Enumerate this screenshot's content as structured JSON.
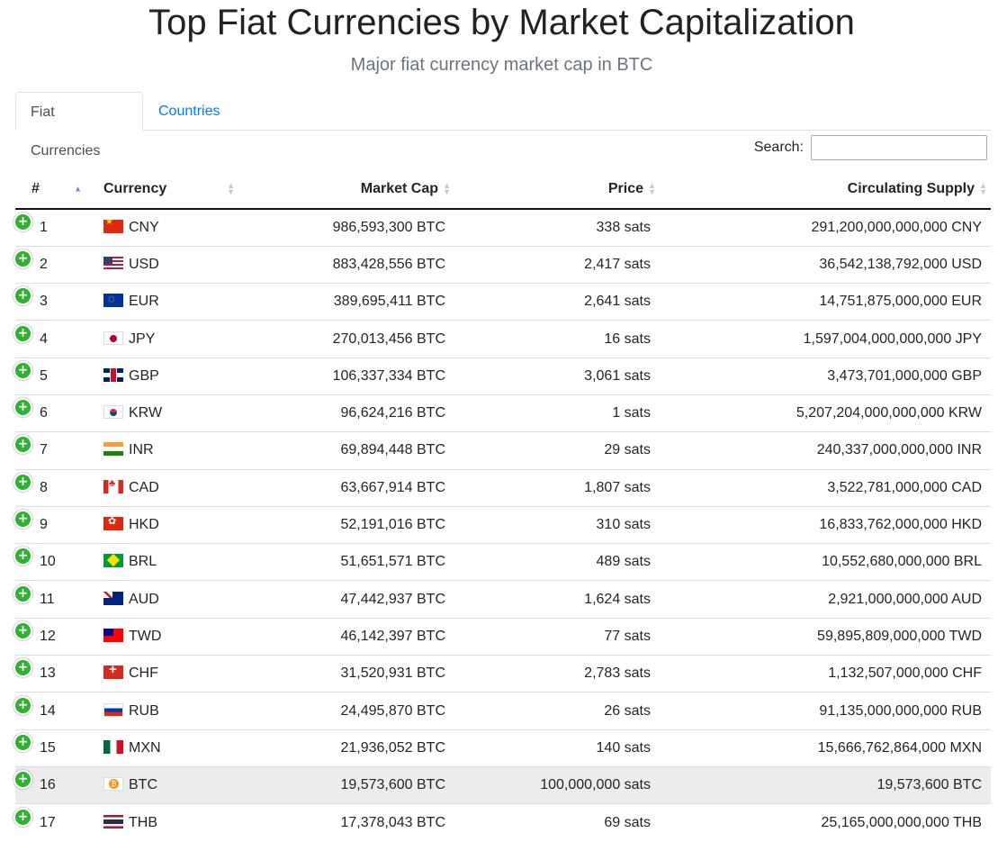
{
  "page": {
    "title": "Top Fiat Currencies by Market Capitalization",
    "subtitle": "Major fiat currency market cap in BTC"
  },
  "tabs": [
    {
      "label": "Fiat Currencies",
      "active": true
    },
    {
      "label": "Countries",
      "active": false
    }
  ],
  "search": {
    "label": "Search:",
    "value": "",
    "placeholder": ""
  },
  "table": {
    "headers": {
      "rank": "#",
      "currency": "Currency",
      "market_cap": "Market Cap",
      "price": "Price",
      "supply": "Circulating Supply"
    },
    "sorted_column": "rank",
    "sort_direction": "ascending",
    "expand_icon": "plus-circle-icon",
    "rows": [
      {
        "rank": "1",
        "currency": "CNY",
        "flag": "china-flag-icon",
        "market_cap": "986,593,300 BTC",
        "price": "338 sats",
        "supply": "291,200,000,000,000 CNY"
      },
      {
        "rank": "2",
        "currency": "USD",
        "flag": "usa-flag-icon",
        "market_cap": "883,428,556 BTC",
        "price": "2,417 sats",
        "supply": "36,542,138,792,000 USD"
      },
      {
        "rank": "3",
        "currency": "EUR",
        "flag": "eu-flag-icon",
        "market_cap": "389,695,411 BTC",
        "price": "2,641 sats",
        "supply": "14,751,875,000,000 EUR"
      },
      {
        "rank": "4",
        "currency": "JPY",
        "flag": "japan-flag-icon",
        "market_cap": "270,013,456 BTC",
        "price": "16 sats",
        "supply": "1,597,004,000,000,000 JPY"
      },
      {
        "rank": "5",
        "currency": "GBP",
        "flag": "uk-flag-icon",
        "market_cap": "106,337,334 BTC",
        "price": "3,061 sats",
        "supply": "3,473,701,000,000 GBP"
      },
      {
        "rank": "6",
        "currency": "KRW",
        "flag": "south-korea-flag-icon",
        "market_cap": "96,624,216 BTC",
        "price": "1 sats",
        "supply": "5,207,204,000,000,000 KRW"
      },
      {
        "rank": "7",
        "currency": "INR",
        "flag": "india-flag-icon",
        "market_cap": "69,894,448 BTC",
        "price": "29 sats",
        "supply": "240,337,000,000,000 INR"
      },
      {
        "rank": "8",
        "currency": "CAD",
        "flag": "canada-flag-icon",
        "market_cap": "63,667,914 BTC",
        "price": "1,807 sats",
        "supply": "3,522,781,000,000 CAD"
      },
      {
        "rank": "9",
        "currency": "HKD",
        "flag": "hong-kong-flag-icon",
        "market_cap": "52,191,016 BTC",
        "price": "310 sats",
        "supply": "16,833,762,000,000 HKD"
      },
      {
        "rank": "10",
        "currency": "BRL",
        "flag": "brazil-flag-icon",
        "market_cap": "51,651,571 BTC",
        "price": "489 sats",
        "supply": "10,552,680,000,000 BRL"
      },
      {
        "rank": "11",
        "currency": "AUD",
        "flag": "australia-flag-icon",
        "market_cap": "47,442,937 BTC",
        "price": "1,624 sats",
        "supply": "2,921,000,000,000 AUD"
      },
      {
        "rank": "12",
        "currency": "TWD",
        "flag": "taiwan-flag-icon",
        "market_cap": "46,142,397 BTC",
        "price": "77 sats",
        "supply": "59,895,809,000,000 TWD"
      },
      {
        "rank": "13",
        "currency": "CHF",
        "flag": "switzerland-flag-icon",
        "market_cap": "31,520,931 BTC",
        "price": "2,783 sats",
        "supply": "1,132,507,000,000 CHF"
      },
      {
        "rank": "14",
        "currency": "RUB",
        "flag": "russia-flag-icon",
        "market_cap": "24,495,870 BTC",
        "price": "26 sats",
        "supply": "91,135,000,000,000 RUB"
      },
      {
        "rank": "15",
        "currency": "MXN",
        "flag": "mexico-flag-icon",
        "market_cap": "21,936,052 BTC",
        "price": "140 sats",
        "supply": "15,666,762,864,000 MXN"
      },
      {
        "rank": "16",
        "currency": "BTC",
        "flag": "bitcoin-icon",
        "market_cap": "19,573,600 BTC",
        "price": "100,000,000 sats",
        "supply": "19,573,600 BTC",
        "highlighted": true
      },
      {
        "rank": "17",
        "currency": "THB",
        "flag": "thailand-flag-icon",
        "market_cap": "17,378,043 BTC",
        "price": "69 sats",
        "supply": "25,165,000,000,000 THB"
      }
    ]
  },
  "colors": {
    "link": "#007bff",
    "expand_button": "#31b131",
    "highlight_row": "#ececec",
    "sort_active": "#6f8ccf"
  }
}
